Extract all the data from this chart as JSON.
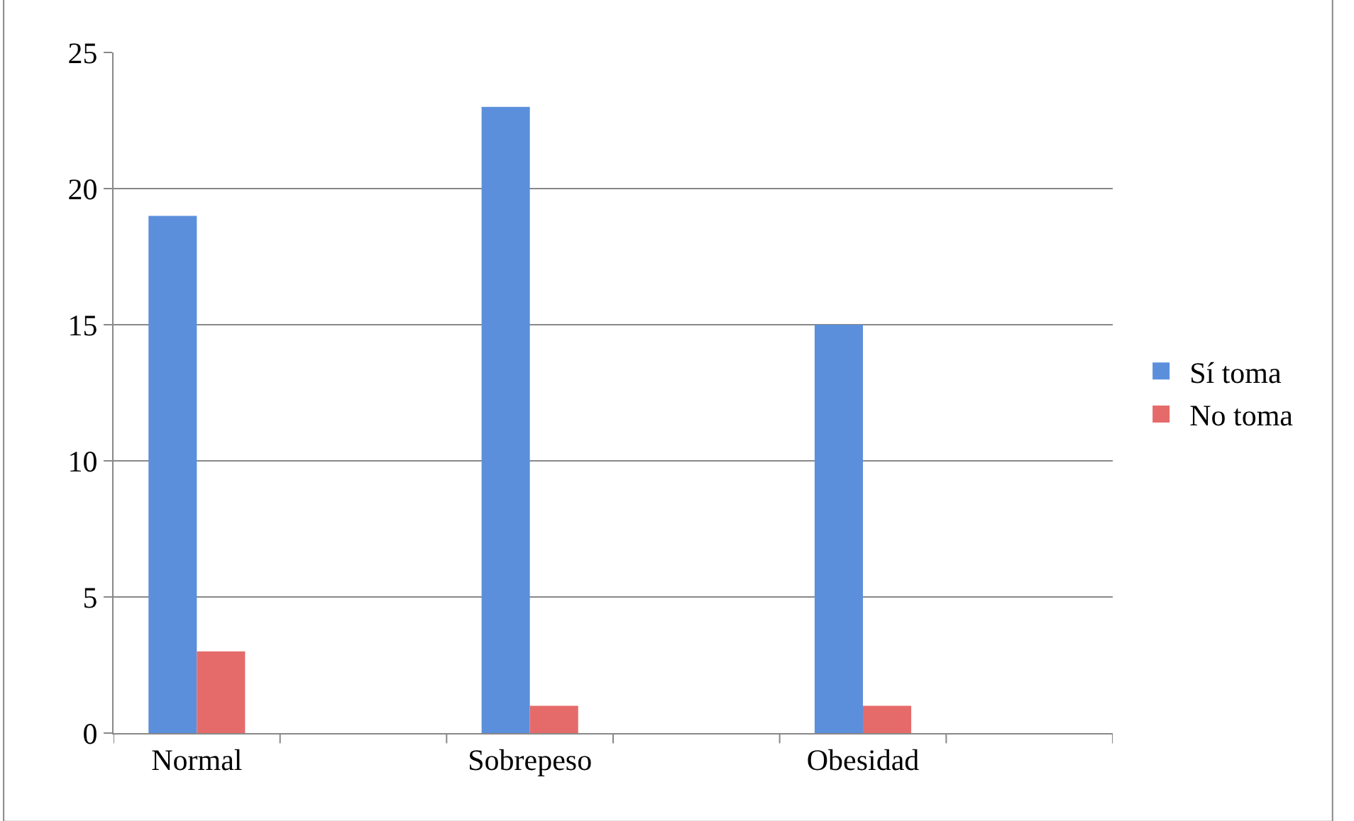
{
  "chart_data": {
    "type": "bar",
    "categories": [
      "Normal",
      null,
      "Sobrepeso",
      null,
      "Obesidad",
      null
    ],
    "series": [
      {
        "name": "Sí toma",
        "color": "#5b8fdc",
        "values": [
          19,
          null,
          23,
          null,
          15,
          null
        ]
      },
      {
        "name": "No toma",
        "color": "#e56b6b",
        "values": [
          3,
          null,
          1,
          null,
          1,
          null
        ]
      }
    ],
    "ylim": [
      0,
      25
    ],
    "yticks": [
      0,
      5,
      10,
      15,
      20,
      25
    ],
    "grid": "y",
    "legend": "right"
  }
}
